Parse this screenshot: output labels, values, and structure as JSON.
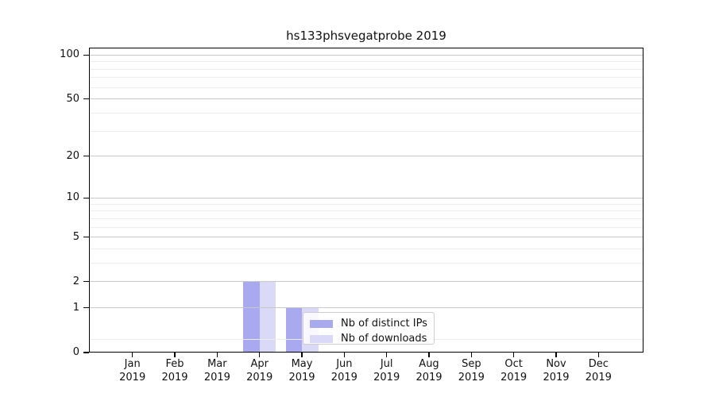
{
  "chart_data": {
    "type": "bar",
    "title": "hs133phsvegatprobe 2019",
    "x": {
      "months": [
        "Jan",
        "Feb",
        "Mar",
        "Apr",
        "May",
        "Jun",
        "Jul",
        "Aug",
        "Sep",
        "Oct",
        "Nov",
        "Dec"
      ],
      "year": "2019"
    },
    "series": [
      {
        "name": "Nb of distinct IPs",
        "color": "#a9a9f0",
        "values": [
          0,
          0,
          0,
          2,
          1,
          0,
          0,
          0,
          0,
          0,
          0,
          0
        ]
      },
      {
        "name": "Nb of downloads",
        "color": "#dadaf8",
        "values": [
          0,
          0,
          0,
          2,
          1,
          0,
          0,
          0,
          0,
          0,
          0,
          0
        ]
      }
    ],
    "yscale": "log1p",
    "ylim": [
      0,
      112
    ],
    "yticks": [
      0,
      1,
      2,
      5,
      10,
      20,
      50,
      100
    ],
    "minor_gridlines": [
      0.22,
      3,
      4,
      6,
      7,
      8,
      9,
      30,
      40,
      60,
      70,
      80,
      90
    ],
    "grid": true,
    "legend_position": "lower center, overlapping May bars"
  },
  "style": {
    "grid_major": "#c8c8c8",
    "grid_minor": "#ececec",
    "spine": "#000000",
    "text": "#111111",
    "legend_border": "#cccccc",
    "legend_bg": "rgba(255,255,255,0.8)"
  }
}
